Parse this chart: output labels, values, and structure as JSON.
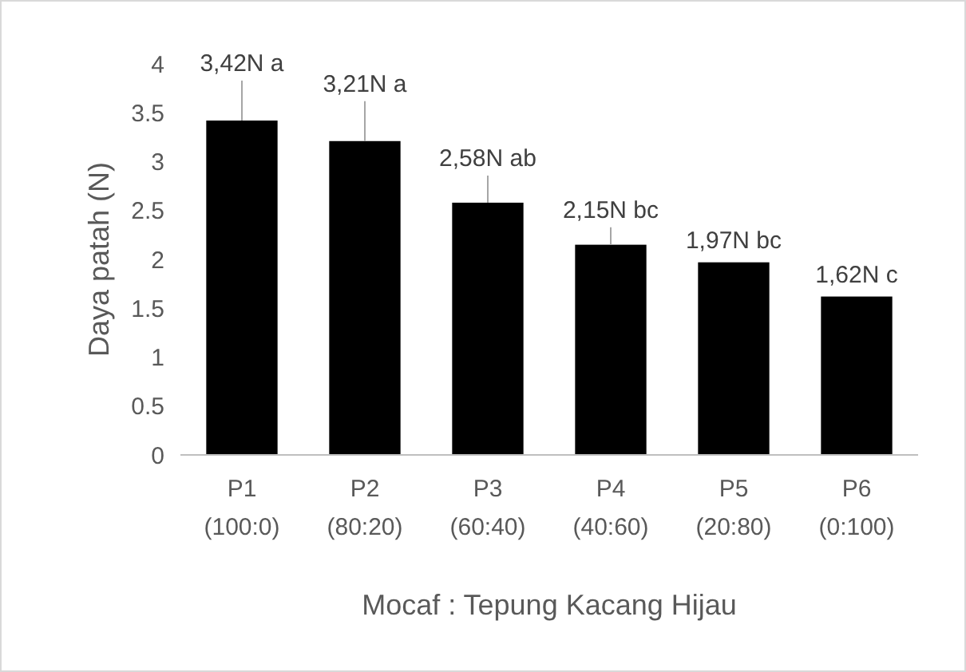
{
  "chart_data": {
    "type": "bar",
    "xlabel": "Mocaf : Tepung Kacang Hijau",
    "ylabel": "Daya patah (N)",
    "categories": [
      "P1\n(100:0)",
      "P2\n(80:20)",
      "P3\n(60:40)",
      "P4\n(40:60)",
      "P5\n(20:80)",
      "P6\n(0:100)"
    ],
    "values": [
      3.42,
      3.21,
      2.58,
      2.15,
      1.97,
      1.62
    ],
    "value_labels": [
      "3,42N a",
      "3,21N a",
      "2,58N ab",
      "2,15N bc",
      "1,97N bc",
      "1,62N c"
    ],
    "color": "#000000",
    "ylim": [
      0,
      4
    ],
    "yticks": [
      0,
      0.5,
      1,
      1.5,
      2,
      2.5,
      3,
      3.5,
      4
    ],
    "grid": false
  }
}
